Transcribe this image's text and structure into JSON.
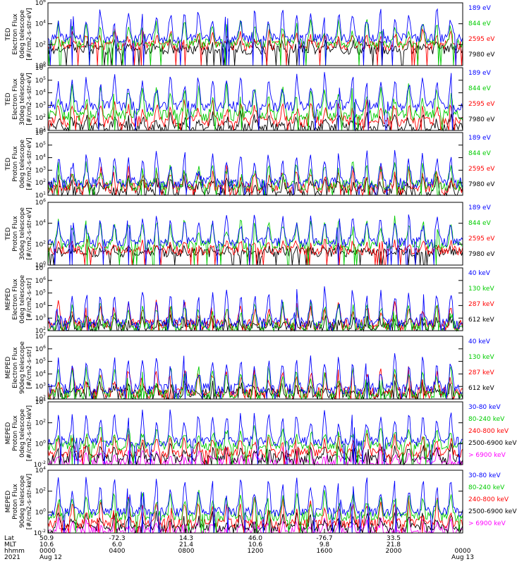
{
  "chart_data": [
    {
      "type": "line",
      "ylabel_lines": [
        "TED",
        "Electron Flux",
        "0deg telescope",
        "[#/cm2-s-str-eV]"
      ],
      "y_exp": [
        0,
        2,
        4,
        6
      ],
      "series": [
        {
          "name": "7980 eV",
          "color": "#000000",
          "base": 1.5,
          "peak": 0.8
        },
        {
          "name": "2595 eV",
          "color": "#ff0000",
          "base": 1.9,
          "peak": 1.3
        },
        {
          "name": "844 eV",
          "color": "#00cc00",
          "base": 2.1,
          "peak": 2.0
        },
        {
          "name": "189 eV",
          "color": "#0000ff",
          "base": 2.6,
          "peak": 2.6
        }
      ]
    },
    {
      "type": "line",
      "ylabel_lines": [
        "TED",
        "Electron Flux",
        "30deg telescope",
        "[#/cm2-s-str-eV]"
      ],
      "y_exp": [
        1,
        2,
        3,
        4,
        5,
        6
      ],
      "series": [
        {
          "name": "7980 eV",
          "color": "#000000",
          "base": 1.2,
          "peak": 1.0
        },
        {
          "name": "2595 eV",
          "color": "#ff0000",
          "base": 1.7,
          "peak": 1.5
        },
        {
          "name": "844 eV",
          "color": "#00cc00",
          "base": 2.2,
          "peak": 2.2
        },
        {
          "name": "189 eV",
          "color": "#0000ff",
          "base": 2.9,
          "peak": 2.4
        }
      ]
    },
    {
      "type": "line",
      "ylabel_lines": [
        "TED",
        "Proton Flux",
        "0deg telescope",
        "[#/cm2-s-str-eV]"
      ],
      "y_exp": [
        1,
        2,
        3,
        4,
        5,
        6
      ],
      "series": [
        {
          "name": "7980 eV",
          "color": "#000000",
          "base": 1.3,
          "peak": 1.0
        },
        {
          "name": "2595 eV",
          "color": "#ff0000",
          "base": 1.6,
          "peak": 1.4
        },
        {
          "name": "844 eV",
          "color": "#00cc00",
          "base": 1.8,
          "peak": 1.6
        },
        {
          "name": "189 eV",
          "color": "#0000ff",
          "base": 2.0,
          "peak": 2.2
        }
      ]
    },
    {
      "type": "line",
      "ylabel_lines": [
        "TED",
        "Proton Flux",
        "30deg telescope",
        "[#/cm2-s-str-eV]"
      ],
      "y_exp": [
        0,
        2,
        4,
        6
      ],
      "series": [
        {
          "name": "7980 eV",
          "color": "#000000",
          "base": 1.2,
          "peak": 0.4
        },
        {
          "name": "2595 eV",
          "color": "#ff0000",
          "base": 1.4,
          "peak": 0.8
        },
        {
          "name": "844 eV",
          "color": "#00cc00",
          "base": 1.9,
          "peak": 2.5
        },
        {
          "name": "189 eV",
          "color": "#0000ff",
          "base": 2.2,
          "peak": 2.4
        }
      ]
    },
    {
      "type": "line",
      "ylabel_lines": [
        "MEPED",
        "Electron Flux",
        "0deg telescope",
        "[#/cm2-s-str]"
      ],
      "y_exp": [
        2,
        3,
        4,
        5,
        6,
        7
      ],
      "series": [
        {
          "name": "612 keV",
          "color": "#000000",
          "base": 2.3,
          "peak": 0.6
        },
        {
          "name": "287 keV",
          "color": "#ff0000",
          "base": 2.5,
          "peak": 1.6
        },
        {
          "name": "130 keV",
          "color": "#00cc00",
          "base": 2.3,
          "peak": 1.8
        },
        {
          "name": "40 keV",
          "color": "#0000ff",
          "base": 2.6,
          "peak": 2.6
        }
      ]
    },
    {
      "type": "line",
      "ylabel_lines": [
        "MEPED",
        "Electron Flux",
        "90deg telescope",
        "[#/cm2-s-str]"
      ],
      "y_exp": [
        2,
        3,
        4,
        5,
        6,
        7
      ],
      "series": [
        {
          "name": "612 keV",
          "color": "#000000",
          "base": 2.4,
          "peak": 0.8
        },
        {
          "name": "287 keV",
          "color": "#ff0000",
          "base": 2.5,
          "peak": 1.8
        },
        {
          "name": "130 keV",
          "color": "#00cc00",
          "base": 2.3,
          "peak": 2.2
        },
        {
          "name": "40 keV",
          "color": "#0000ff",
          "base": 2.8,
          "peak": 2.5
        }
      ]
    },
    {
      "type": "line",
      "ylabel_lines": [
        "MEPED",
        "Proton Flux",
        "0deg telescope",
        "[#/cm2-s-str-keV]"
      ],
      "y_exp": [
        -2,
        0,
        2,
        4
      ],
      "series": [
        {
          "name": "> 6900 keV",
          "color": "#ff00ff",
          "base": -1.8,
          "peak": 1.2
        },
        {
          "name": "2500-6900 keV",
          "color": "#000000",
          "base": -1.4,
          "peak": 1.3
        },
        {
          "name": "240-800 keV",
          "color": "#ff0000",
          "base": -0.9,
          "peak": 1.6
        },
        {
          "name": "80-240 keV",
          "color": "#00cc00",
          "base": -0.2,
          "peak": 1.6
        },
        {
          "name": "30-80 keV",
          "color": "#0000ff",
          "base": 0.2,
          "peak": 2.8
        }
      ]
    },
    {
      "type": "line",
      "ylabel_lines": [
        "MEPED",
        "Proton Flux",
        "90deg telescope",
        "[#/cm2-s-str-keV]"
      ],
      "y_exp": [
        -2,
        0,
        2,
        4
      ],
      "series": [
        {
          "name": "> 6900 keV",
          "color": "#ff00ff",
          "base": -1.8,
          "peak": 1.0
        },
        {
          "name": "2500-6900 keV",
          "color": "#000000",
          "base": -1.5,
          "peak": 1.4
        },
        {
          "name": "240-800 keV",
          "color": "#ff0000",
          "base": -1.1,
          "peak": 2.2
        },
        {
          "name": "80-240 keV",
          "color": "#00cc00",
          "base": -0.4,
          "peak": 2.2
        },
        {
          "name": "30-80 keV",
          "color": "#0000ff",
          "base": 0.0,
          "peak": 3.2
        }
      ]
    }
  ],
  "x_axis": {
    "row_labels": [
      "Lat",
      "MLT",
      "hhmm",
      "2021"
    ],
    "columns": [
      {
        "lat": "50.9",
        "mlt": "10.6",
        "hhmm": "0000",
        "date": "Aug 12"
      },
      {
        "lat": "-72.3",
        "mlt": "6.0",
        "hhmm": "0400",
        "date": ""
      },
      {
        "lat": "14.3",
        "mlt": "21.4",
        "hhmm": "0800",
        "date": ""
      },
      {
        "lat": "46.0",
        "mlt": "10.6",
        "hhmm": "1200",
        "date": ""
      },
      {
        "lat": "-76.7",
        "mlt": "9.8",
        "hhmm": "1600",
        "date": ""
      },
      {
        "lat": "33.5",
        "mlt": "21.8",
        "hhmm": "2000",
        "date": ""
      },
      {
        "lat": "",
        "mlt": "",
        "hhmm": "0000",
        "date": "Aug 13"
      }
    ]
  }
}
